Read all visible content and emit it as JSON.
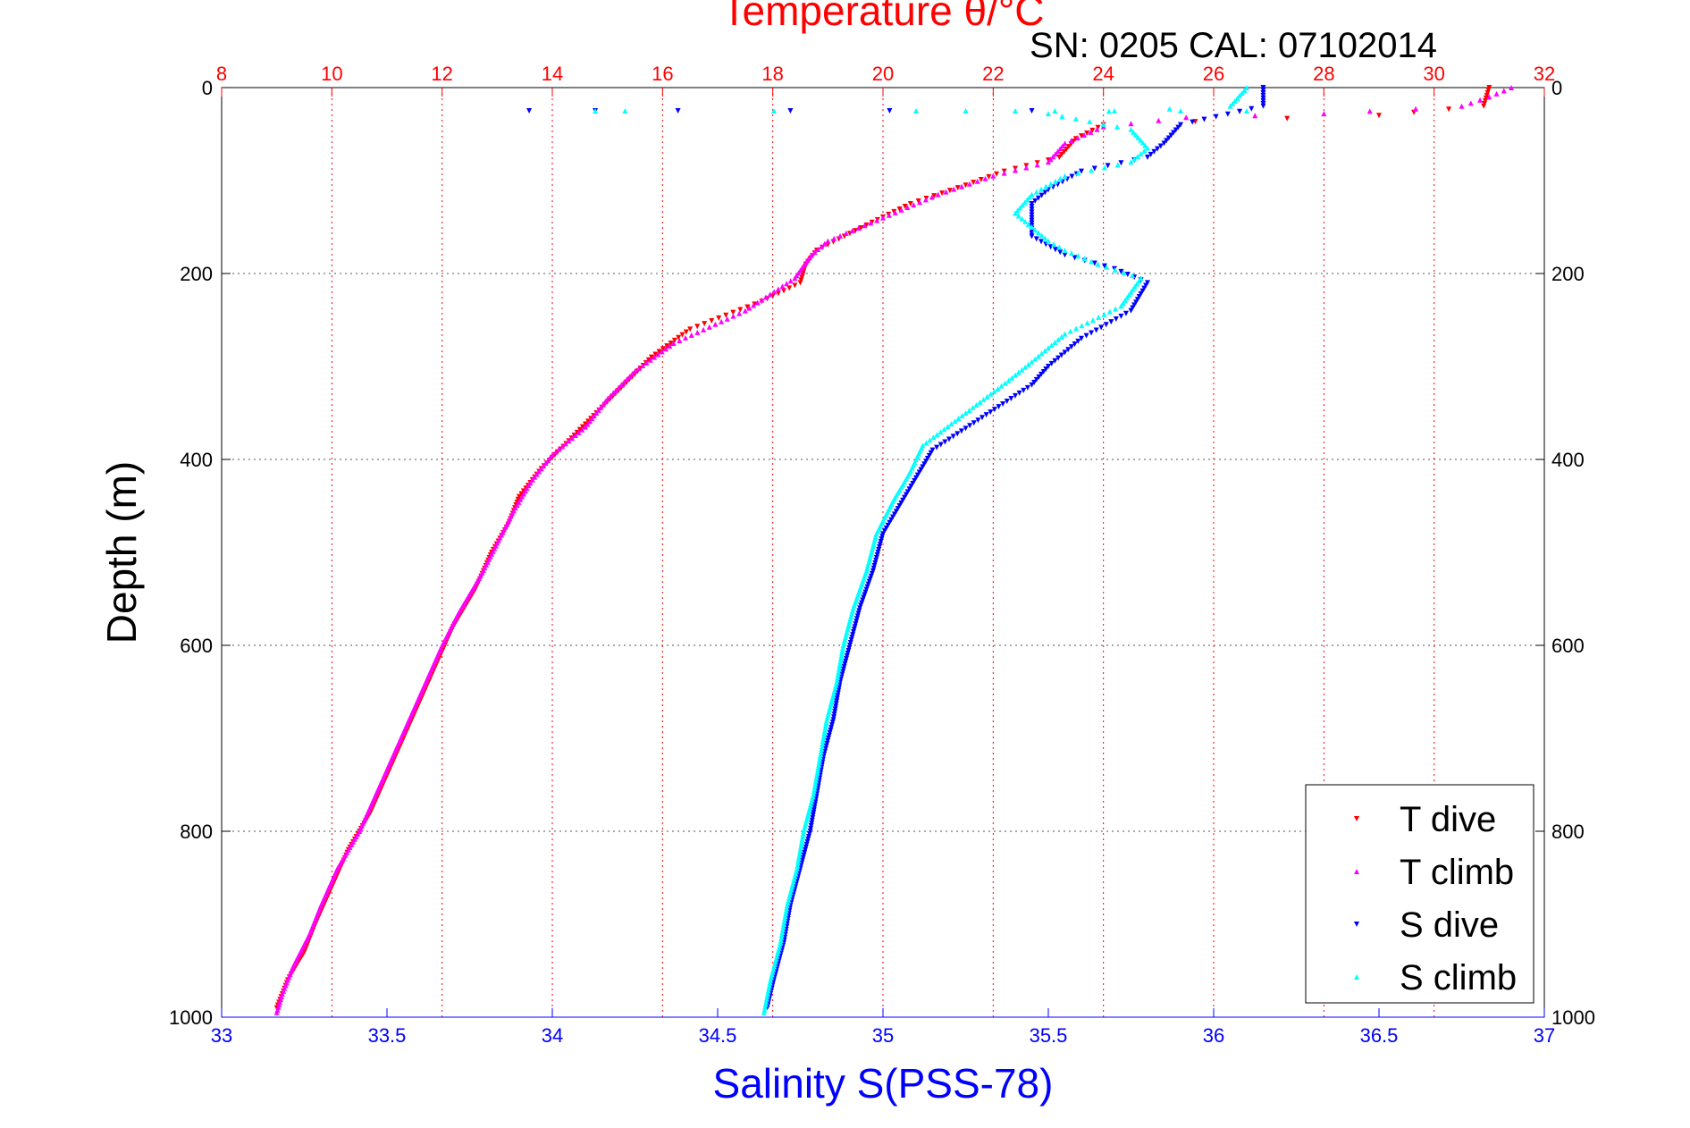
{
  "chart_data": {
    "type": "scatter",
    "title": "Temperature θ/°C",
    "subtitle": "SN: 0205  CAL: 07102014",
    "ylabel": "Depth (m)",
    "xlabel": "Salinity S(PSS-78)",
    "x2label": "Temperature θ/°C",
    "ylim": [
      0,
      1000
    ],
    "y_reversed": true,
    "xlim_salinity": [
      33,
      37
    ],
    "xlim_temperature": [
      8,
      32
    ],
    "y_ticks": [
      "0",
      "200",
      "400",
      "600",
      "800",
      "1000"
    ],
    "x_ticks_salinity": [
      "33",
      "33.5",
      "34",
      "34.5",
      "35",
      "35.5",
      "36",
      "36.5",
      "37"
    ],
    "x_ticks_temperature": [
      "8",
      "10",
      "12",
      "14",
      "16",
      "18",
      "20",
      "22",
      "24",
      "26",
      "28",
      "30",
      "32"
    ],
    "grid": true,
    "legend_position": "bottom-right",
    "colors": {
      "t_dive": "#ff0000",
      "t_climb": "#ff00ff",
      "s_dive": "#0000ff",
      "s_climb": "#00ffff",
      "temperature_axis": "#ff0000",
      "salinity_axis": "#0000ff"
    },
    "series": [
      {
        "name": "T dive",
        "axis": "temperature",
        "marker": "triangle-down",
        "color": "#ff0000",
        "points": [
          [
            31.0,
            0
          ],
          [
            30.9,
            20
          ],
          [
            29.0,
            30
          ],
          [
            24.0,
            40
          ],
          [
            23.5,
            55
          ],
          [
            23.2,
            75
          ],
          [
            22.2,
            90
          ],
          [
            21.5,
            105
          ],
          [
            20.5,
            125
          ],
          [
            19.8,
            145
          ],
          [
            18.8,
            175
          ],
          [
            18.6,
            190
          ],
          [
            18.5,
            210
          ],
          [
            17.8,
            230
          ],
          [
            16.5,
            260
          ],
          [
            15.8,
            290
          ],
          [
            15.3,
            320
          ],
          [
            14.8,
            350
          ],
          [
            14.3,
            380
          ],
          [
            13.8,
            410
          ],
          [
            13.4,
            440
          ],
          [
            13.2,
            470
          ],
          [
            12.9,
            500
          ],
          [
            12.6,
            540
          ],
          [
            12.2,
            580
          ],
          [
            11.9,
            620
          ],
          [
            11.6,
            660
          ],
          [
            11.3,
            700
          ],
          [
            11.0,
            740
          ],
          [
            10.7,
            780
          ],
          [
            10.3,
            820
          ],
          [
            10.0,
            860
          ],
          [
            9.7,
            900
          ],
          [
            9.5,
            930
          ],
          [
            9.2,
            960
          ],
          [
            9.0,
            990
          ]
        ]
      },
      {
        "name": "T climb",
        "axis": "temperature",
        "marker": "triangle-up",
        "color": "#ff00ff",
        "points": [
          [
            31.4,
            0
          ],
          [
            31.0,
            10
          ],
          [
            30.5,
            20
          ],
          [
            28.0,
            28
          ],
          [
            25.5,
            32
          ],
          [
            24.0,
            42
          ],
          [
            23.3,
            60
          ],
          [
            23.0,
            80
          ],
          [
            22.0,
            95
          ],
          [
            21.0,
            115
          ],
          [
            20.0,
            140
          ],
          [
            19.0,
            165
          ],
          [
            18.7,
            180
          ],
          [
            18.4,
            205
          ],
          [
            17.5,
            240
          ],
          [
            16.2,
            275
          ],
          [
            15.5,
            305
          ],
          [
            15.0,
            335
          ],
          [
            14.6,
            365
          ],
          [
            14.0,
            395
          ],
          [
            13.6,
            425
          ],
          [
            13.3,
            455
          ],
          [
            13.0,
            490
          ],
          [
            12.7,
            525
          ],
          [
            12.3,
            565
          ],
          [
            12.0,
            600
          ],
          [
            11.7,
            640
          ],
          [
            11.4,
            680
          ],
          [
            11.1,
            720
          ],
          [
            10.8,
            760
          ],
          [
            10.5,
            800
          ],
          [
            10.1,
            840
          ],
          [
            9.8,
            880
          ],
          [
            9.6,
            910
          ],
          [
            9.3,
            945
          ],
          [
            9.1,
            975
          ],
          [
            9.0,
            995
          ]
        ]
      },
      {
        "name": "S dive",
        "axis": "salinity",
        "marker": "triangle-down",
        "color": "#0000ff",
        "points": [
          [
            36.15,
            0
          ],
          [
            36.15,
            20
          ],
          [
            35.9,
            40
          ],
          [
            35.85,
            60
          ],
          [
            35.8,
            75
          ],
          [
            35.6,
            90
          ],
          [
            35.5,
            110
          ],
          [
            35.45,
            125
          ],
          [
            35.45,
            140
          ],
          [
            35.45,
            160
          ],
          [
            35.55,
            180
          ],
          [
            35.7,
            195
          ],
          [
            35.8,
            210
          ],
          [
            35.75,
            240
          ],
          [
            35.6,
            270
          ],
          [
            35.5,
            300
          ],
          [
            35.45,
            320
          ],
          [
            35.3,
            355
          ],
          [
            35.15,
            390
          ],
          [
            35.1,
            420
          ],
          [
            35.05,
            450
          ],
          [
            35.0,
            480
          ],
          [
            34.97,
            520
          ],
          [
            34.93,
            560
          ],
          [
            34.9,
            600
          ],
          [
            34.87,
            640
          ],
          [
            34.85,
            680
          ],
          [
            34.82,
            720
          ],
          [
            34.8,
            760
          ],
          [
            34.78,
            800
          ],
          [
            34.75,
            840
          ],
          [
            34.72,
            880
          ],
          [
            34.7,
            920
          ],
          [
            34.67,
            960
          ],
          [
            34.65,
            990
          ]
        ]
      },
      {
        "name": "S climb",
        "axis": "salinity",
        "marker": "triangle-up",
        "color": "#00ffff",
        "points": [
          [
            36.1,
            0
          ],
          [
            36.05,
            20
          ],
          [
            35.5,
            28
          ],
          [
            35.75,
            45
          ],
          [
            35.8,
            65
          ],
          [
            35.75,
            80
          ],
          [
            35.55,
            95
          ],
          [
            35.45,
            115
          ],
          [
            35.4,
            135
          ],
          [
            35.45,
            150
          ],
          [
            35.5,
            165
          ],
          [
            35.55,
            175
          ],
          [
            35.65,
            190
          ],
          [
            35.78,
            205
          ],
          [
            35.72,
            235
          ],
          [
            35.55,
            265
          ],
          [
            35.45,
            295
          ],
          [
            35.38,
            315
          ],
          [
            35.25,
            350
          ],
          [
            35.12,
            385
          ],
          [
            35.08,
            415
          ],
          [
            35.03,
            445
          ],
          [
            34.98,
            480
          ],
          [
            34.95,
            520
          ],
          [
            34.91,
            560
          ],
          [
            34.88,
            600
          ],
          [
            34.86,
            640
          ],
          [
            34.83,
            680
          ],
          [
            34.81,
            720
          ],
          [
            34.79,
            760
          ],
          [
            34.76,
            800
          ],
          [
            34.74,
            840
          ],
          [
            34.71,
            880
          ],
          [
            34.69,
            920
          ],
          [
            34.66,
            960
          ],
          [
            34.64,
            995
          ]
        ]
      }
    ],
    "scatter_outliers": {
      "s_dive": [
        [
          33.93,
          25
        ],
        [
          34.13,
          25
        ],
        [
          34.38,
          25
        ],
        [
          34.72,
          25
        ],
        [
          35.02,
          25
        ],
        [
          35.45,
          25
        ]
      ],
      "s_climb": [
        [
          34.13,
          25
        ],
        [
          34.22,
          25
        ],
        [
          34.67,
          25
        ],
        [
          35.1,
          25
        ],
        [
          35.25,
          25
        ],
        [
          35.4,
          25
        ],
        [
          35.52,
          25
        ],
        [
          35.7,
          25
        ],
        [
          35.9,
          25
        ],
        [
          36.1,
          25
        ]
      ]
    }
  }
}
